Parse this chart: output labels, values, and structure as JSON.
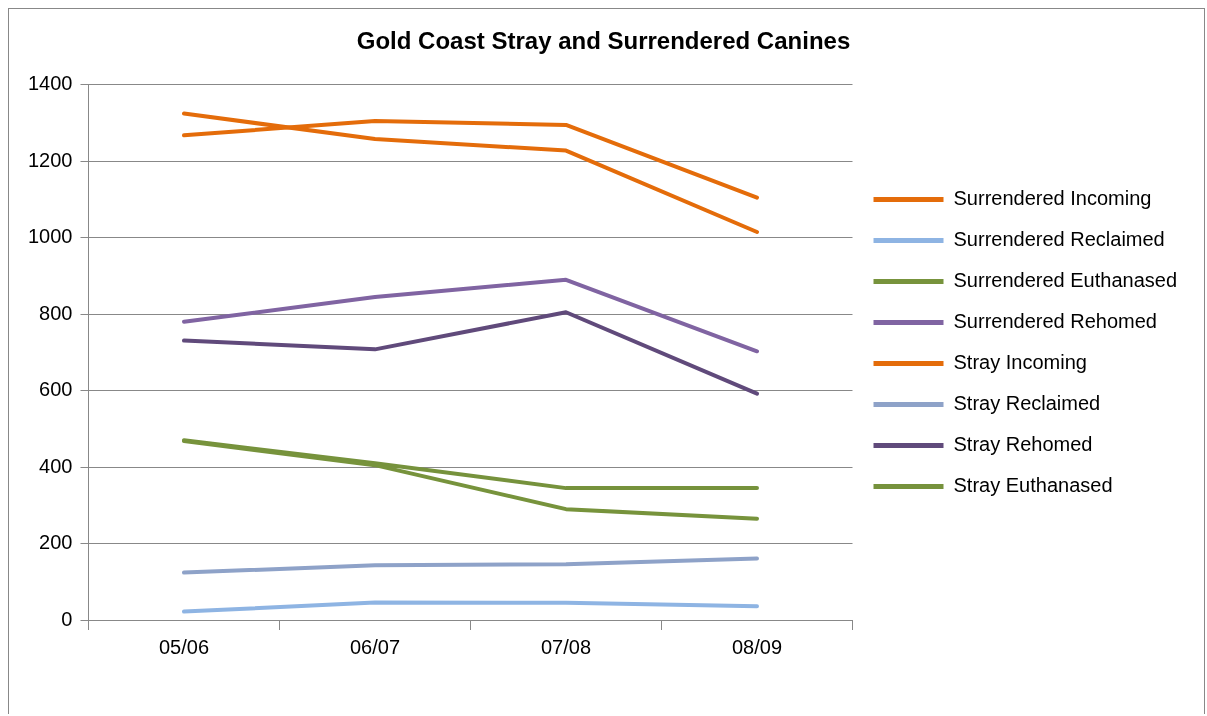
{
  "chart_data": {
    "type": "line",
    "title": "Gold Coast Stray and Surrendered Canines",
    "categories": [
      "05/06",
      "06/07",
      "07/08",
      "08/09"
    ],
    "series": [
      {
        "name": "Surrendered Incoming",
        "color": "#e46c0a",
        "values": [
          1268,
          1305,
          1295,
          1105
        ]
      },
      {
        "name": "Surrendered Reclaimed",
        "color": "#8eb4e3",
        "values": [
          22,
          46,
          45,
          36
        ]
      },
      {
        "name": "Surrendered Euthanased",
        "color": "#77933c",
        "values": [
          468,
          405,
          290,
          265
        ]
      },
      {
        "name": "Surrendered Rehomed",
        "color": "#8064a2",
        "values": [
          780,
          845,
          890,
          703
        ]
      },
      {
        "name": "Stray Incoming",
        "color": "#e46c0a",
        "values": [
          1325,
          1258,
          1228,
          1015
        ]
      },
      {
        "name": "Stray Reclaimed",
        "color": "#8ea2c8",
        "values": [
          124,
          143,
          146,
          161
        ]
      },
      {
        "name": "Stray Rehomed",
        "color": "#604a7b",
        "values": [
          731,
          708,
          805,
          592
        ]
      },
      {
        "name": "Stray Euthanased",
        "color": "#76923c",
        "values": [
          470,
          410,
          345,
          345
        ]
      }
    ],
    "ylim": [
      0,
      1400
    ],
    "yticks": [
      0,
      200,
      400,
      600,
      800,
      1000,
      1200,
      1400
    ],
    "grid": "y",
    "legend": "right",
    "marker": "none",
    "line_style": "solid"
  }
}
